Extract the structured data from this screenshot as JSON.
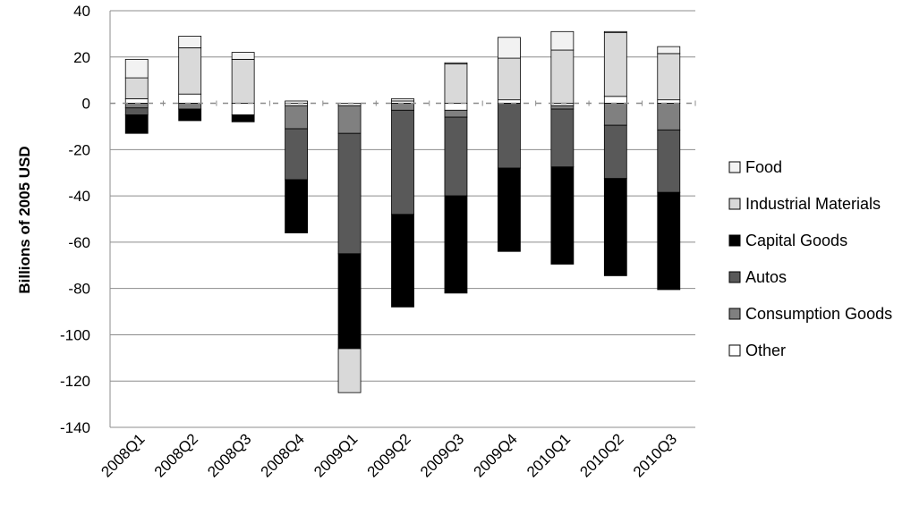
{
  "chart_data": {
    "type": "bar",
    "stacked": true,
    "ylabel": "Billions of 2005 USD",
    "xlabel": "",
    "title": "",
    "ylim": [
      -140,
      40
    ],
    "yticks": [
      40,
      20,
      0,
      -20,
      -40,
      -60,
      -80,
      -100,
      -120,
      -140
    ],
    "ytick_labels": [
      "40",
      "20",
      "0",
      "-20",
      "-40",
      "-60",
      "-80",
      "-100",
      "-120",
      "-140"
    ],
    "grid": true,
    "legend_position": "right",
    "categories": [
      "2008Q1",
      "2008Q2",
      "2008Q3",
      "2008Q4",
      "2009Q1",
      "2009Q2",
      "2009Q3",
      "2009Q4",
      "2010Q1",
      "2010Q2",
      "2010Q3"
    ],
    "series": [
      {
        "name": "Food",
        "color": "#f2f2f2",
        "values": [
          8,
          5,
          3,
          1,
          0,
          1,
          0.5,
          9,
          8,
          0.5,
          3
        ]
      },
      {
        "name": "Industrial Materials",
        "color": "#d9d9d9",
        "values": [
          9,
          20,
          19,
          0,
          -19,
          0,
          17,
          18,
          23,
          27.5,
          20
        ]
      },
      {
        "name": "Capital Goods",
        "color": "#000000",
        "values": [
          -8,
          -5,
          -3,
          -23,
          -41,
          -40,
          -42,
          -36,
          -42,
          -42,
          -42
        ]
      },
      {
        "name": "Autos",
        "color": "#595959",
        "values": [
          -3,
          0,
          0,
          -22,
          -52,
          -45,
          -34,
          -28,
          -25,
          -23,
          -27
        ]
      },
      {
        "name": "Consumption Goods",
        "color": "#808080",
        "values": [
          -2,
          -2.5,
          0,
          -10,
          -12,
          -3,
          -3,
          0,
          -1.5,
          -9.5,
          -11.5
        ]
      },
      {
        "name": "Other",
        "color": "#ffffff",
        "values": [
          2,
          4,
          -5,
          -1,
          -1,
          1,
          -3,
          1.5,
          -1,
          3,
          1.5
        ]
      }
    ]
  }
}
